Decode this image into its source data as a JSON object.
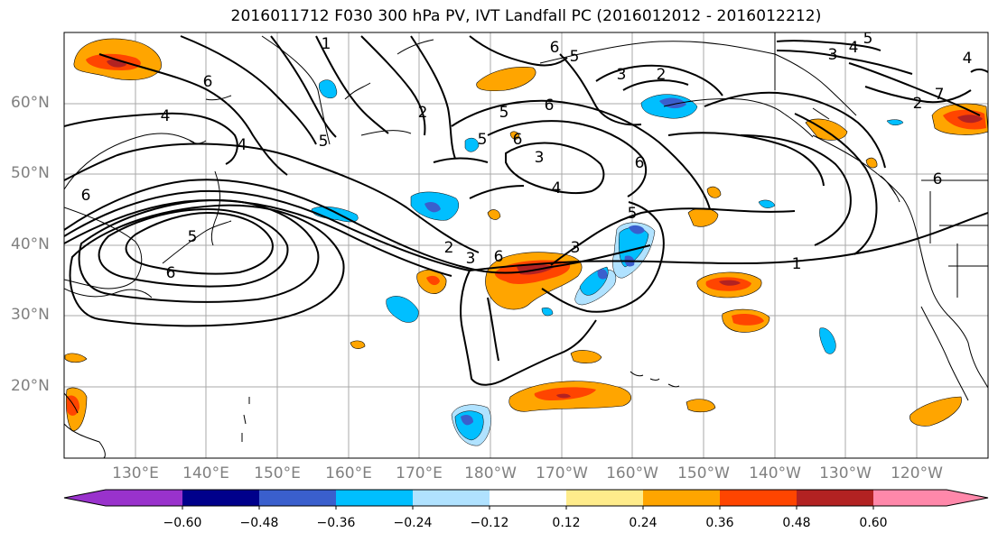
{
  "title": "2016011712 F030 300 hPa PV, IVT Landfall PC (2016012012 - 2016012212)",
  "lat_labels": [
    "60°N",
    "50°N",
    "40°N",
    "30°N",
    "20°N"
  ],
  "lon_labels": [
    "130°E",
    "140°E",
    "150°E",
    "160°E",
    "170°E",
    "180°W",
    "170°W",
    "160°W",
    "150°W",
    "140°W",
    "130°W",
    "120°W"
  ],
  "contour_labels": [
    "1",
    "6",
    "5",
    "3",
    "2",
    "5",
    "6",
    "4",
    "6",
    "4",
    "6",
    "5",
    "6",
    "2",
    "3",
    "5",
    "6",
    "3",
    "6",
    "4",
    "5",
    "3",
    "6",
    "5",
    "1",
    "4",
    "3",
    "5",
    "2",
    "4",
    "6",
    "7",
    "2"
  ],
  "colorbar": {
    "colors": [
      "#9932cc",
      "#00008b",
      "#3a5fcd",
      "#00bfff",
      "#b0e2ff",
      "#ffffff",
      "#ffec8b",
      "#ffa500",
      "#ff4500",
      "#b22222",
      "#ff88aa"
    ],
    "tick_labels": [
      "−0.60",
      "−0.48",
      "−0.36",
      "−0.24",
      "−0.12",
      "0.12",
      "0.24",
      "0.36",
      "0.48",
      "0.60"
    ]
  }
}
